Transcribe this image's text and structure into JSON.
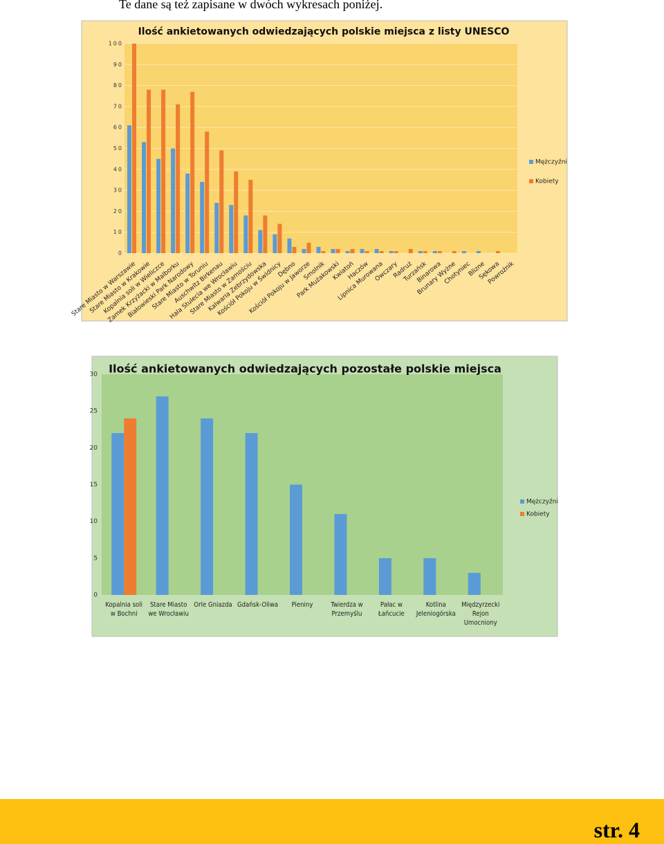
{
  "intro": "Te dane są też zapisane w dwóch wykresach poniżej.",
  "chart_data": [
    {
      "type": "bar",
      "title": "Ilość ankietowanych odwiedzających polskie miejsca z listy UNESCO",
      "categories": [
        "Stare Miasto w Warszawie",
        "Stare Miasto w Krakowie",
        "Kopalnia soli w Wieliczce",
        "Zamek Krzyżacki w Malborku",
        "Białowieski Park Narodowy",
        "Stare Miasto w Toruniu",
        "Auschwitz Birkenau",
        "Hala Stulecia we Wrocławiu",
        "Stare Miasto w Zamościu",
        "Kalwaria Zebrzydowska",
        "Kościół Pokoju w Świdnicy",
        "Dębno",
        "Kościół Pokoju w Jaworze",
        "Smolnik",
        "Park Mużakowski",
        "Kwiatoń",
        "Haczów",
        "Lipnica Murowana",
        "Owczary",
        "Radruż",
        "Turzańsk",
        "Binarowa",
        "Brunary Wyżne",
        "Chotyniec",
        "Blizne",
        "Sękowa",
        "Powroźnik"
      ],
      "series": [
        {
          "name": "Mężczyźni",
          "color": "#5b9bd5",
          "values": [
            61,
            53,
            45,
            50,
            38,
            34,
            24,
            23,
            18,
            11,
            9,
            7,
            2,
            3,
            2,
            1,
            2,
            2,
            1,
            0,
            1,
            1,
            0,
            1,
            1,
            0,
            0
          ]
        },
        {
          "name": "Kobiety",
          "color": "#ed7d31",
          "values": [
            100,
            78,
            78,
            71,
            77,
            58,
            49,
            39,
            35,
            18,
            14,
            3,
            5,
            1,
            2,
            2,
            1,
            1,
            1,
            2,
            1,
            1,
            1,
            0,
            0,
            1,
            0
          ]
        }
      ],
      "ylim": [
        0,
        100
      ],
      "yticks": [
        0,
        10,
        20,
        30,
        40,
        50,
        60,
        70,
        80,
        90,
        100
      ],
      "grid": true,
      "legend": "right"
    },
    {
      "type": "bar",
      "title": "Ilość ankietowanych odwiedzających pozostałe polskie miejsca",
      "categories": [
        "Kopalnia soli w Bochni",
        "Stare Miasto we Wrocławiu",
        "Orle Gniazda",
        "Gdańsk-Oliwa",
        "Pieniny",
        "Twierdza w Przemyślu",
        "Pałac w Łańcucie",
        "Kotlina Jeleniogórska",
        "Międzyrzecki Rejon Umocniony"
      ],
      "series": [
        {
          "name": "Mężczyźni",
          "color": "#5b9bd5",
          "values": [
            22,
            27,
            24,
            22,
            15,
            11,
            5,
            5,
            3
          ]
        },
        {
          "name": "Kobiety",
          "color": "#ed7d31",
          "values": [
            24,
            null,
            null,
            null,
            null,
            null,
            null,
            null,
            null
          ]
        }
      ],
      "ylim": [
        0,
        30
      ],
      "yticks": [
        0,
        5,
        10,
        15,
        20,
        25,
        30
      ],
      "grid": false,
      "legend": "right"
    }
  ],
  "footer": "str. 4"
}
